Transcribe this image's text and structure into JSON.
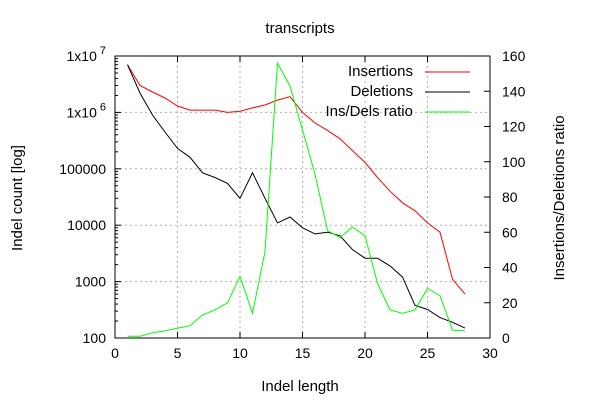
{
  "chart_data": {
    "type": "line",
    "title": "transcripts",
    "xlabel": "Indel length",
    "ylabel": "Indel count [log]",
    "y2label": "Insertions/Deletions ratio",
    "xlim": [
      0,
      30
    ],
    "ylim": [
      100,
      10000000
    ],
    "yscale": "log",
    "y2lim": [
      0,
      160
    ],
    "grid": true,
    "legend_position": "top-right",
    "x_ticks": [
      "0",
      "5",
      "10",
      "15",
      "20",
      "25",
      "30"
    ],
    "y_ticks": [
      {
        "base": "100",
        "exp": ""
      },
      {
        "base": "1000",
        "exp": ""
      },
      {
        "base": "10000",
        "exp": ""
      },
      {
        "base": "100000",
        "exp": ""
      },
      {
        "base": "1x10",
        "exp": "6"
      },
      {
        "base": "1x10",
        "exp": "7"
      }
    ],
    "y2_ticks": [
      "0",
      "20",
      "40",
      "60",
      "80",
      "100",
      "120",
      "140",
      "160"
    ],
    "series": [
      {
        "name": "Insertions",
        "axis": "y",
        "color": "#ff0000",
        "x": [
          1,
          2,
          3,
          4,
          5,
          6,
          7,
          8,
          9,
          10,
          11,
          12,
          13,
          14,
          15,
          16,
          17,
          18,
          19,
          20,
          21,
          22,
          23,
          24,
          25,
          26,
          27,
          28
        ],
        "y": [
          7000000,
          3000000,
          2300000,
          1800000,
          1300000,
          1100000,
          1100000,
          1100000,
          1000000,
          1050000,
          1200000,
          1350000,
          1650000,
          1900000,
          1000000,
          650000,
          480000,
          340000,
          210000,
          130000,
          70000,
          40000,
          25000,
          18000,
          11000,
          7500,
          1100,
          600
        ]
      },
      {
        "name": "Deletions",
        "axis": "y",
        "color": "#000000",
        "x": [
          1,
          2,
          3,
          4,
          5,
          6,
          7,
          8,
          9,
          10,
          11,
          12,
          13,
          14,
          15,
          16,
          17,
          18,
          19,
          20,
          21,
          22,
          23,
          24,
          25,
          26,
          27,
          28
        ],
        "y": [
          7000000,
          2200000,
          900000,
          450000,
          230000,
          160000,
          85000,
          70000,
          55000,
          30000,
          85000,
          30000,
          11000,
          14000,
          9000,
          7000,
          7500,
          6500,
          3700,
          2600,
          2600,
          1900,
          1200,
          380,
          320,
          230,
          190,
          150
        ]
      },
      {
        "name": "Ins/Dels ratio",
        "axis": "y2",
        "color": "#00ff00",
        "x": [
          1,
          2,
          3,
          4,
          5,
          6,
          7,
          8,
          9,
          10,
          11,
          12,
          13,
          14,
          15,
          16,
          17,
          18,
          19,
          20,
          21,
          22,
          23,
          24,
          25,
          26,
          27,
          28
        ],
        "y": [
          1,
          1,
          3,
          4,
          5.5,
          7,
          13,
          16,
          20,
          35,
          14,
          49,
          156,
          143,
          118,
          93,
          61,
          57,
          63,
          58,
          31,
          16,
          14,
          16,
          28,
          24,
          4.5,
          4
        ]
      }
    ]
  }
}
